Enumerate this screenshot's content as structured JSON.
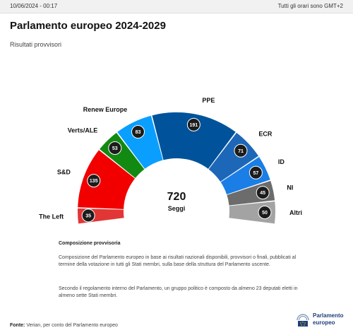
{
  "header": {
    "timestamp": "10/06/2024 - 00:17",
    "timezone_note": "Tutti gli orari sono GMT+2"
  },
  "title": "Parlamento europeo 2024-2029",
  "subtitle": "Risultati provvisori",
  "center": {
    "value": "720",
    "label": "Seggi"
  },
  "notes": {
    "heading": "Composizione provvisoria",
    "paragraph1": "Composizione del Parlamento europeo in base ai risultati nazionali disponibili, provvisori o finali, pubblicati al termine della votazione in tutti gli Stati membri, sulla base della struttura del Parlamento uscente.",
    "paragraph2": "Secondo il regolamento interno del Parlamento, un gruppo politico è composto da almeno 23 deputati eletti in almeno sette Stati membri."
  },
  "source": {
    "label": "Fonte:",
    "text": "Verian, per conto del Parlamento europeo"
  },
  "logo": {
    "line1": "Parlamento",
    "line2": "europeo"
  },
  "chart_data": {
    "type": "parliament-semicircle",
    "total": 720,
    "series": [
      {
        "name": "The Left",
        "value": 35,
        "color": "#e23636"
      },
      {
        "name": "S&D",
        "value": 135,
        "color": "#f20000"
      },
      {
        "name": "Verts/ALE",
        "value": 53,
        "color": "#128a12"
      },
      {
        "name": "Renew Europe",
        "value": 83,
        "color": "#0a9fff"
      },
      {
        "name": "PPE",
        "value": 191,
        "color": "#00539a"
      },
      {
        "name": "ECR",
        "value": 71,
        "color": "#1d67b8"
      },
      {
        "name": "ID",
        "value": 57,
        "color": "#1a7ee6"
      },
      {
        "name": "NI",
        "value": 45,
        "color": "#6c6c6c"
      },
      {
        "name": "Altri",
        "value": 50,
        "color": "#a3a3a3"
      }
    ]
  }
}
